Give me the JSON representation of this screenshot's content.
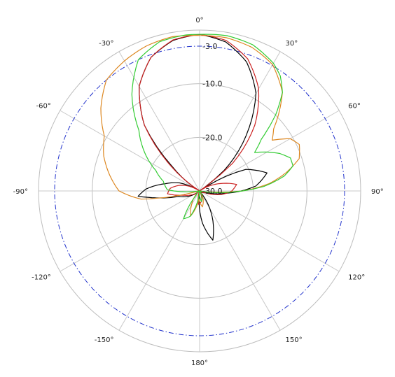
{
  "chart_data": {
    "type": "polar-line",
    "theta_unit": "deg",
    "theta_zero": "top",
    "theta_direction": "clockwise",
    "angle_ticks": [
      {
        "deg": 0,
        "label": "0°"
      },
      {
        "deg": 30,
        "label": "30°"
      },
      {
        "deg": 60,
        "label": "60°"
      },
      {
        "deg": 90,
        "label": "90°"
      },
      {
        "deg": 120,
        "label": "120°"
      },
      {
        "deg": 150,
        "label": "150°"
      },
      {
        "deg": 180,
        "label": "180°"
      },
      {
        "deg": -150,
        "label": "-150°"
      },
      {
        "deg": -120,
        "label": "-120°"
      },
      {
        "deg": -90,
        "label": "-90°"
      },
      {
        "deg": -60,
        "label": "-60°"
      },
      {
        "deg": -30,
        "label": "-30°"
      }
    ],
    "radial_unit": "dB",
    "radial_range": [
      -30,
      0
    ],
    "radial_rings": [
      0,
      -10,
      -20,
      -30
    ],
    "radial_labels": [
      {
        "db": -3,
        "label": "-3.0"
      },
      {
        "db": -10,
        "label": "-10.0"
      },
      {
        "db": -20,
        "label": "-20.0"
      },
      {
        "db": -30,
        "label": "-30.0"
      }
    ],
    "reference_line": {
      "db": -3,
      "style": "dash-dot",
      "color": "#2233cc"
    },
    "grid": true,
    "series": [
      {
        "color": "#000000",
        "points": [
          [
            0,
            -0.8
          ],
          [
            10,
            -1.8
          ],
          [
            20,
            -4.4
          ],
          [
            30,
            -9.0
          ],
          [
            40,
            -16.5
          ],
          [
            50,
            -24.0
          ],
          [
            55,
            -30.0
          ],
          [
            65,
            -20.5
          ],
          [
            75,
            -17.0
          ],
          [
            85,
            -19.5
          ],
          [
            95,
            -25.0
          ],
          [
            105,
            -29.0
          ],
          [
            140,
            -30.0
          ],
          [
            165,
            -20.5
          ],
          [
            175,
            -24.0
          ],
          [
            185,
            -29.0
          ],
          [
            200,
            -30.0
          ],
          [
            230,
            -30.0
          ],
          [
            255,
            -26.0
          ],
          [
            262,
            -21.0
          ],
          [
            265,
            -18.5
          ],
          [
            272,
            -20.0
          ],
          [
            282,
            -23.5
          ],
          [
            292,
            -26.0
          ],
          [
            302,
            -30.0
          ],
          [
            312,
            -23.0
          ],
          [
            320,
            -14.0
          ],
          [
            330,
            -7.5
          ],
          [
            340,
            -3.5
          ],
          [
            350,
            -1.5
          ],
          [
            360,
            -0.8
          ]
        ]
      },
      {
        "color": "#cc2222",
        "points": [
          [
            0,
            -0.8
          ],
          [
            10,
            -1.5
          ],
          [
            20,
            -3.8
          ],
          [
            30,
            -8.0
          ],
          [
            40,
            -14.0
          ],
          [
            50,
            -22.0
          ],
          [
            55,
            -30.0
          ],
          [
            70,
            -26.0
          ],
          [
            80,
            -23.0
          ],
          [
            90,
            -24.0
          ],
          [
            100,
            -26.0
          ],
          [
            110,
            -29.0
          ],
          [
            125,
            -30.0
          ],
          [
            150,
            -30.0
          ],
          [
            170,
            -28.0
          ],
          [
            185,
            -27.5
          ],
          [
            200,
            -30.0
          ],
          [
            230,
            -30.0
          ],
          [
            255,
            -27.0
          ],
          [
            265,
            -24.0
          ],
          [
            275,
            -24.5
          ],
          [
            285,
            -26.0
          ],
          [
            295,
            -28.0
          ],
          [
            303,
            -30.0
          ],
          [
            312,
            -22.0
          ],
          [
            320,
            -14.0
          ],
          [
            330,
            -7.5
          ],
          [
            340,
            -3.5
          ],
          [
            350,
            -1.4
          ],
          [
            360,
            -0.8
          ]
        ]
      },
      {
        "color": "#dd8822",
        "points": [
          [
            0,
            -1.0
          ],
          [
            10,
            -1.0
          ],
          [
            20,
            -1.5
          ],
          [
            30,
            -2.8
          ],
          [
            40,
            -6.0
          ],
          [
            50,
            -12.0
          ],
          [
            55,
            -13.5
          ],
          [
            60,
            -10.5
          ],
          [
            65,
            -9.5
          ],
          [
            72,
            -10.5
          ],
          [
            78,
            -13.5
          ],
          [
            84,
            -17.0
          ],
          [
            90,
            -22.0
          ],
          [
            95,
            -28.0
          ],
          [
            105,
            -30.0
          ],
          [
            140,
            -30.0
          ],
          [
            170,
            -27.0
          ],
          [
            185,
            -28.5
          ],
          [
            200,
            -25.0
          ],
          [
            210,
            -27.0
          ],
          [
            230,
            -30.0
          ],
          [
            255,
            -30.0
          ],
          [
            262,
            -19.0
          ],
          [
            270,
            -15.0
          ],
          [
            280,
            -13.0
          ],
          [
            290,
            -11.0
          ],
          [
            300,
            -9.5
          ],
          [
            310,
            -6.0
          ],
          [
            320,
            -3.0
          ],
          [
            330,
            -2.0
          ],
          [
            340,
            -1.2
          ],
          [
            350,
            -0.8
          ],
          [
            360,
            -1.0
          ]
        ]
      },
      {
        "color": "#33cc33",
        "points": [
          [
            0,
            -0.8
          ],
          [
            10,
            -0.6
          ],
          [
            20,
            -1.0
          ],
          [
            30,
            -2.5
          ],
          [
            35,
            -3.8
          ],
          [
            40,
            -6.0
          ],
          [
            45,
            -10.0
          ],
          [
            50,
            -15.0
          ],
          [
            55,
            -17.5
          ],
          [
            60,
            -15.5
          ],
          [
            65,
            -13.5
          ],
          [
            70,
            -12.0
          ],
          [
            75,
            -12.0
          ],
          [
            80,
            -14.0
          ],
          [
            86,
            -18.0
          ],
          [
            92,
            -24.0
          ],
          [
            100,
            -30.0
          ],
          [
            140,
            -30.0
          ],
          [
            170,
            -28.0
          ],
          [
            185,
            -30.0
          ],
          [
            200,
            -25.0
          ],
          [
            210,
            -24.0
          ],
          [
            220,
            -29.0
          ],
          [
            240,
            -30.0
          ],
          [
            262,
            -30.0
          ],
          [
            272,
            -24.0
          ],
          [
            285,
            -23.0
          ],
          [
            295,
            -21.0
          ],
          [
            305,
            -17.5
          ],
          [
            315,
            -14.0
          ],
          [
            325,
            -8.0
          ],
          [
            335,
            -3.0
          ],
          [
            345,
            -1.2
          ],
          [
            355,
            -0.8
          ],
          [
            360,
            -0.8
          ]
        ]
      }
    ]
  }
}
